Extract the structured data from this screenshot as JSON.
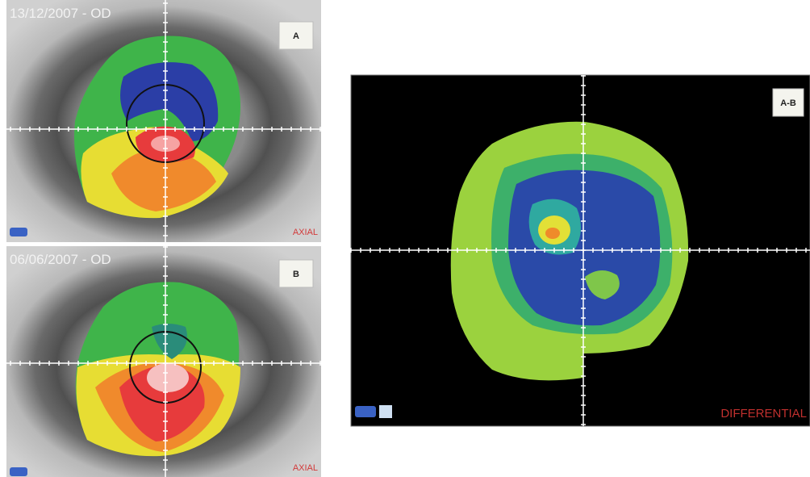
{
  "panels": [
    {
      "date": "13/12/2007 - OD",
      "label": "A",
      "map_type": "AXIAL"
    },
    {
      "date": "06/06/2007 - OD",
      "label": "B",
      "map_type": "AXIAL"
    },
    {
      "label": "A-B",
      "map_type": "DIFFERENTIAL"
    }
  ]
}
